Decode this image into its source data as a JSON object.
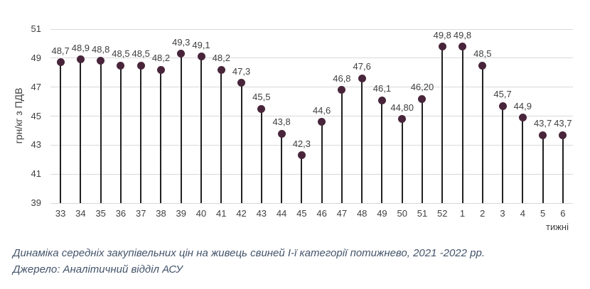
{
  "chart_data": {
    "type": "lollipop",
    "title": "",
    "categories": [
      "33",
      "34",
      "35",
      "36",
      "37",
      "38",
      "39",
      "40",
      "41",
      "42",
      "43",
      "44",
      "45",
      "46",
      "47",
      "48",
      "49",
      "50",
      "51",
      "52",
      "1",
      "2",
      "3",
      "4",
      "5",
      "6"
    ],
    "values": [
      48.7,
      48.9,
      48.8,
      48.5,
      48.5,
      48.2,
      49.3,
      49.1,
      48.2,
      47.3,
      45.5,
      43.8,
      42.3,
      44.6,
      46.8,
      47.6,
      46.1,
      44.8,
      46.2,
      49.8,
      49.8,
      48.5,
      45.7,
      44.9,
      43.7,
      43.7
    ],
    "labels": [
      "48,7",
      "48,9",
      "48,8",
      "48,5",
      "48,5",
      "48,2",
      "49,3",
      "49,1",
      "48,2",
      "47,3",
      "45,5",
      "43,8",
      "42,3",
      "44,6",
      "46,8",
      "47,6",
      "46,1",
      "44,80",
      "46,20",
      "49,8",
      "49,8",
      "48,5",
      "45,7",
      "44,9",
      "43,7",
      "43,7"
    ],
    "ylabel": "грн/кг з ПДВ",
    "xlabel": "тижні",
    "yticks": [
      39,
      41,
      43,
      45,
      47,
      49,
      51
    ],
    "ylim": [
      39,
      51
    ],
    "grid": true,
    "legend": "none",
    "marker_color": "#48253a",
    "stem_color": "#212121",
    "grid_color": "#d9d9d9"
  },
  "caption": {
    "title": "Динаміка середніх закупівельних цін на живець свиней І-ї категорії потижнево, 2021 -2022 рр.",
    "source": "Джерело: Аналітичний відділ АСУ"
  }
}
